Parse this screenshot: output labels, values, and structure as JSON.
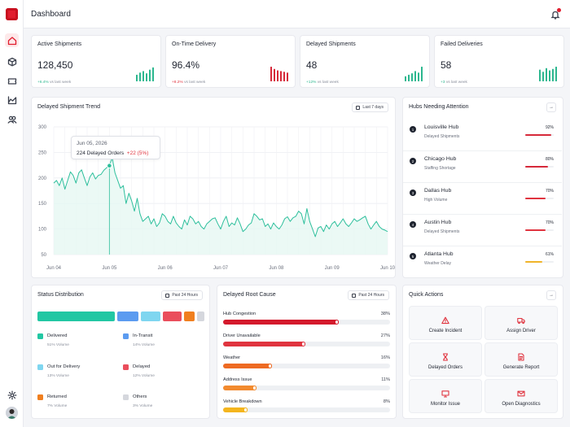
{
  "header": {
    "title": "Dashboard"
  },
  "sidebar": {
    "items": [
      {
        "name": "home",
        "icon": "home-icon",
        "active": true
      },
      {
        "name": "shipments",
        "icon": "box-icon"
      },
      {
        "name": "tracking",
        "icon": "ticket-icon"
      },
      {
        "name": "analytics",
        "icon": "area-chart-icon"
      },
      {
        "name": "team",
        "icon": "users-icon"
      }
    ],
    "settings_icon": "gear-icon",
    "avatar": "user-avatar"
  },
  "kpis": [
    {
      "title": "Active Shipments",
      "value": "128,450",
      "change": "+6.4%",
      "suffix": "vs last week",
      "trend": "pos",
      "color": "#2db78f",
      "spark": [
        0.45,
        0.6,
        0.7,
        0.55,
        0.8,
        0.95
      ]
    },
    {
      "title": "On-Time Delivery",
      "value": "96.4%",
      "change": "+8.2%",
      "suffix": "vs last week",
      "trend": "neg",
      "color": "#d6293a",
      "spark": [
        1.0,
        0.85,
        0.75,
        0.7,
        0.65,
        0.6
      ]
    },
    {
      "title": "Delayed Shipments",
      "value": "48",
      "change": "+12%",
      "suffix": "vs last week",
      "trend": "pos",
      "color": "#2db78f",
      "spark": [
        0.35,
        0.45,
        0.55,
        0.7,
        0.6,
        1.0
      ]
    },
    {
      "title": "Failed Deliveries",
      "value": "58",
      "change": "+3",
      "suffix": "vs last week",
      "trend": "pos",
      "color": "#2db78f",
      "spark": [
        0.8,
        0.65,
        0.9,
        0.75,
        0.85,
        1.0
      ]
    }
  ],
  "trend": {
    "title": "Delayed Shipment Trend",
    "range_label": "Last 7 days",
    "tooltip": {
      "date": "Jun 05, 2026",
      "value": "224 Delayed Orders",
      "change": "+22 (5%)"
    }
  },
  "chart_data": {
    "type": "area",
    "title": "Delayed Shipment Trend",
    "xlabel": "",
    "ylabel": "",
    "x_ticks": [
      "Jun 04",
      "Jun 05",
      "Jun 06",
      "Jun 07",
      "Jun 08",
      "Jun 09",
      "Jun 10"
    ],
    "y_ticks": [
      50,
      100,
      150,
      200,
      250,
      300
    ],
    "ylim": [
      50,
      300
    ],
    "grid": true,
    "color": "#2dbf9c",
    "highlight": {
      "x": 1.0,
      "y": 224
    },
    "x": [
      0.0,
      0.05,
      0.1,
      0.15,
      0.2,
      0.25,
      0.3,
      0.35,
      0.4,
      0.45,
      0.5,
      0.55,
      0.6,
      0.65,
      0.7,
      0.75,
      0.8,
      0.85,
      0.9,
      0.95,
      1.0,
      1.05,
      1.1,
      1.15,
      1.2,
      1.25,
      1.3,
      1.35,
      1.4,
      1.45,
      1.5,
      1.55,
      1.6,
      1.65,
      1.7,
      1.75,
      1.8,
      1.85,
      1.9,
      1.95,
      2.0,
      2.05,
      2.1,
      2.15,
      2.2,
      2.25,
      2.3,
      2.35,
      2.4,
      2.45,
      2.5,
      2.55,
      2.6,
      2.65,
      2.7,
      2.75,
      2.8,
      2.85,
      2.9,
      2.95,
      3.0,
      3.05,
      3.1,
      3.15,
      3.2,
      3.25,
      3.3,
      3.35,
      3.4,
      3.45,
      3.5,
      3.55,
      3.6,
      3.65,
      3.7,
      3.75,
      3.8,
      3.85,
      3.9,
      3.95,
      4.0,
      4.05,
      4.1,
      4.15,
      4.2,
      4.25,
      4.3,
      4.35,
      4.4,
      4.45,
      4.5,
      4.55,
      4.6,
      4.65,
      4.7,
      4.75,
      4.8,
      4.85,
      4.9,
      4.95,
      5.0,
      5.05,
      5.1,
      5.15,
      5.2,
      5.25,
      5.3,
      5.35,
      5.4,
      5.45,
      5.5,
      5.55,
      5.6,
      5.65,
      5.7,
      5.75,
      5.8,
      5.85,
      5.9,
      5.95,
      6.0
    ],
    "y": [
      190,
      195,
      185,
      200,
      178,
      195,
      212,
      205,
      190,
      210,
      216,
      200,
      185,
      202,
      210,
      198,
      205,
      207,
      215,
      220,
      224,
      240,
      210,
      195,
      180,
      185,
      150,
      170,
      155,
      135,
      160,
      130,
      115,
      120,
      125,
      110,
      120,
      105,
      112,
      130,
      125,
      115,
      110,
      125,
      112,
      105,
      100,
      118,
      108,
      125,
      120,
      110,
      115,
      105,
      100,
      110,
      115,
      120,
      122,
      110,
      100,
      115,
      125,
      105,
      112,
      108,
      122,
      110,
      95,
      100,
      108,
      112,
      130,
      125,
      118,
      120,
      105,
      110,
      100,
      112,
      105,
      100,
      108,
      120,
      124,
      115,
      122,
      125,
      135,
      130,
      110,
      140,
      115,
      100,
      85,
      102,
      105,
      95,
      108,
      100,
      110,
      115,
      105,
      112,
      120,
      110,
      105,
      112,
      120,
      115,
      118,
      122,
      125,
      110,
      100,
      108,
      115,
      105,
      100,
      98,
      95
    ]
  },
  "hubs": {
    "title": "Hubs Needing Attention",
    "items": [
      {
        "rank": "1",
        "name": "Louisville Hub",
        "reason": "Delayed Shipments",
        "pct": "92%",
        "fill": 0.92,
        "color": "#d6293a"
      },
      {
        "rank": "2",
        "name": "Chicago Hub",
        "reason": "Staffing Shortage",
        "pct": "80%",
        "fill": 0.8,
        "color": "#d6293a"
      },
      {
        "rank": "3",
        "name": "Dallas Hub",
        "reason": "High Volume",
        "pct": "70%",
        "fill": 0.7,
        "color": "#e0343f"
      },
      {
        "rank": "4",
        "name": "Austin Hub",
        "reason": "Delayed Shipments",
        "pct": "70%",
        "fill": 0.7,
        "color": "#e0343f"
      },
      {
        "rank": "5",
        "name": "Atlanta Hub",
        "reason": "Weather Delay",
        "pct": "61%",
        "fill": 0.61,
        "color": "#f0b429"
      }
    ]
  },
  "status": {
    "title": "Status Distribution",
    "range_label": "Past 24 Hours",
    "segments": [
      {
        "name": "Delivered",
        "pct": "51% Volume",
        "share": 0.51,
        "color": "#22c7a3"
      },
      {
        "name": "In-Transit",
        "pct": "14% Volume",
        "share": 0.14,
        "color": "#5b9bf0"
      },
      {
        "name": "Out for Delivery",
        "pct": "13% Volume",
        "share": 0.13,
        "color": "#7fd6f0"
      },
      {
        "name": "Delayed",
        "pct": "12% Volume",
        "share": 0.12,
        "color": "#ea4e5c"
      },
      {
        "name": "Returned",
        "pct": "7% Volume",
        "share": 0.07,
        "color": "#f07f1f"
      },
      {
        "name": "Others",
        "pct": "3% Volume",
        "share": 0.03,
        "color": "#d5d7dd"
      }
    ]
  },
  "root_cause": {
    "title": "Delayed Root Cause",
    "range_label": "Past 24 Hours",
    "items": [
      {
        "name": "Hub Congestion",
        "pct": "38%",
        "fill": 0.38,
        "color": "#d41a2c"
      },
      {
        "name": "Driver Unavailable",
        "pct": "27%",
        "fill": 0.27,
        "color": "#e0343f"
      },
      {
        "name": "Weather",
        "pct": "16%",
        "fill": 0.16,
        "color": "#ee6a22"
      },
      {
        "name": "Address Issue",
        "pct": "11%",
        "fill": 0.11,
        "color": "#f28a2e"
      },
      {
        "name": "Vehicle Breakdown",
        "pct": "8%",
        "fill": 0.08,
        "color": "#f4b51e"
      }
    ]
  },
  "quick_actions": {
    "title": "Quick Actions",
    "items": [
      {
        "label": "Create Incident",
        "icon": "alert-triangle-icon"
      },
      {
        "label": "Assign Driver",
        "icon": "truck-icon"
      },
      {
        "label": "Delayed Orders",
        "icon": "hourglass-icon"
      },
      {
        "label": "Generate Report",
        "icon": "file-text-icon"
      },
      {
        "label": "Monitor Issue",
        "icon": "monitor-icon"
      },
      {
        "label": "Open Diagnostics",
        "icon": "mail-icon"
      }
    ]
  }
}
